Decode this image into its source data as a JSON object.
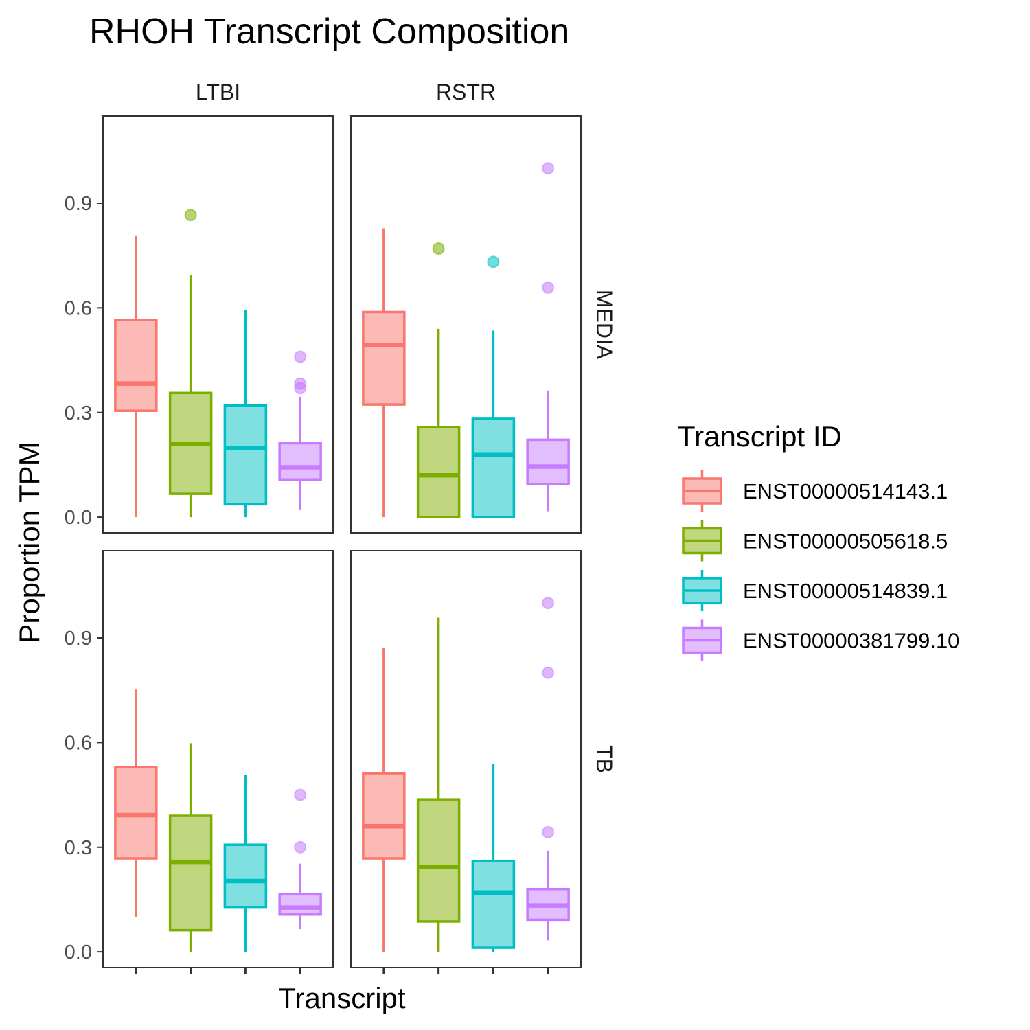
{
  "chart_data": {
    "type": "boxplot",
    "title": "RHOH Transcript Composition",
    "xlabel": "Transcript",
    "ylabel": "Proportion TPM",
    "ylim": [
      -0.045,
      1.15
    ],
    "yticks": [
      "0.0",
      "0.3",
      "0.6",
      "0.9"
    ],
    "ytick_values": [
      0.0,
      0.3,
      0.6,
      0.9
    ],
    "column_facets": [
      "LTBI",
      "RSTR"
    ],
    "row_facets": [
      "MEDIA",
      "TB"
    ],
    "grid": false,
    "legend": {
      "title": "Transcript ID",
      "position": "right",
      "entries": [
        "ENST00000514143.1",
        "ENST00000505618.5",
        "ENST00000514839.1",
        "ENST00000381799.10"
      ]
    },
    "series": [
      {
        "name": "ENST00000514143.1",
        "color": "#F8766D",
        "fill": "#FBBAB5"
      },
      {
        "name": "ENST00000505618.5",
        "color": "#7CAE00",
        "fill": "#C0D780"
      },
      {
        "name": "ENST00000514839.1",
        "color": "#00BFC4",
        "fill": "#80DFE1"
      },
      {
        "name": "ENST00000381799.10",
        "color": "#C77CFF",
        "fill": "#E3BEFF"
      }
    ],
    "panels": [
      {
        "column": "LTBI",
        "row": "MEDIA",
        "boxes": [
          {
            "series": "ENST00000514143.1",
            "lower_whisker": 0.0,
            "q1": 0.305,
            "median": 0.383,
            "q3": 0.565,
            "upper_whisker": 0.808,
            "outliers": []
          },
          {
            "series": "ENST00000505618.5",
            "lower_whisker": 0.0,
            "q1": 0.067,
            "median": 0.21,
            "q3": 0.356,
            "upper_whisker": 0.695,
            "outliers": [
              0.866
            ]
          },
          {
            "series": "ENST00000514839.1",
            "lower_whisker": 0.0,
            "q1": 0.037,
            "median": 0.198,
            "q3": 0.32,
            "upper_whisker": 0.595,
            "outliers": []
          },
          {
            "series": "ENST00000381799.10",
            "lower_whisker": 0.02,
            "q1": 0.108,
            "median": 0.143,
            "q3": 0.212,
            "upper_whisker": 0.345,
            "outliers": [
              0.46,
              0.383,
              0.37
            ]
          }
        ]
      },
      {
        "column": "RSTR",
        "row": "MEDIA",
        "boxes": [
          {
            "series": "ENST00000514143.1",
            "lower_whisker": 0.0,
            "q1": 0.323,
            "median": 0.493,
            "q3": 0.588,
            "upper_whisker": 0.828,
            "outliers": []
          },
          {
            "series": "ENST00000505618.5",
            "lower_whisker": 0.0,
            "q1": 0.0,
            "median": 0.12,
            "q3": 0.258,
            "upper_whisker": 0.54,
            "outliers": [
              0.77
            ]
          },
          {
            "series": "ENST00000514839.1",
            "lower_whisker": 0.0,
            "q1": 0.0,
            "median": 0.18,
            "q3": 0.282,
            "upper_whisker": 0.535,
            "outliers": [
              0.732
            ]
          },
          {
            "series": "ENST00000381799.10",
            "lower_whisker": 0.017,
            "q1": 0.095,
            "median": 0.145,
            "q3": 0.222,
            "upper_whisker": 0.363,
            "outliers": [
              1.0,
              0.658
            ]
          }
        ]
      },
      {
        "column": "LTBI",
        "row": "TB",
        "boxes": [
          {
            "series": "ENST00000514143.1",
            "lower_whisker": 0.1,
            "q1": 0.268,
            "median": 0.392,
            "q3": 0.53,
            "upper_whisker": 0.752,
            "outliers": []
          },
          {
            "series": "ENST00000505618.5",
            "lower_whisker": 0.0,
            "q1": 0.062,
            "median": 0.258,
            "q3": 0.39,
            "upper_whisker": 0.598,
            "outliers": []
          },
          {
            "series": "ENST00000514839.1",
            "lower_whisker": 0.0,
            "q1": 0.127,
            "median": 0.203,
            "q3": 0.307,
            "upper_whisker": 0.508,
            "outliers": []
          },
          {
            "series": "ENST00000381799.10",
            "lower_whisker": 0.065,
            "q1": 0.107,
            "median": 0.127,
            "q3": 0.165,
            "upper_whisker": 0.253,
            "outliers": [
              0.45,
              0.3
            ]
          }
        ]
      },
      {
        "column": "RSTR",
        "row": "TB",
        "boxes": [
          {
            "series": "ENST00000514143.1",
            "lower_whisker": 0.0,
            "q1": 0.268,
            "median": 0.36,
            "q3": 0.512,
            "upper_whisker": 0.872,
            "outliers": []
          },
          {
            "series": "ENST00000505618.5",
            "lower_whisker": 0.0,
            "q1": 0.087,
            "median": 0.243,
            "q3": 0.437,
            "upper_whisker": 0.958,
            "outliers": []
          },
          {
            "series": "ENST00000514839.1",
            "lower_whisker": 0.0,
            "q1": 0.012,
            "median": 0.17,
            "q3": 0.26,
            "upper_whisker": 0.538,
            "outliers": []
          },
          {
            "series": "ENST00000381799.10",
            "lower_whisker": 0.033,
            "q1": 0.092,
            "median": 0.133,
            "q3": 0.18,
            "upper_whisker": 0.29,
            "outliers": [
              1.0,
              0.8,
              0.343
            ]
          }
        ]
      }
    ]
  }
}
